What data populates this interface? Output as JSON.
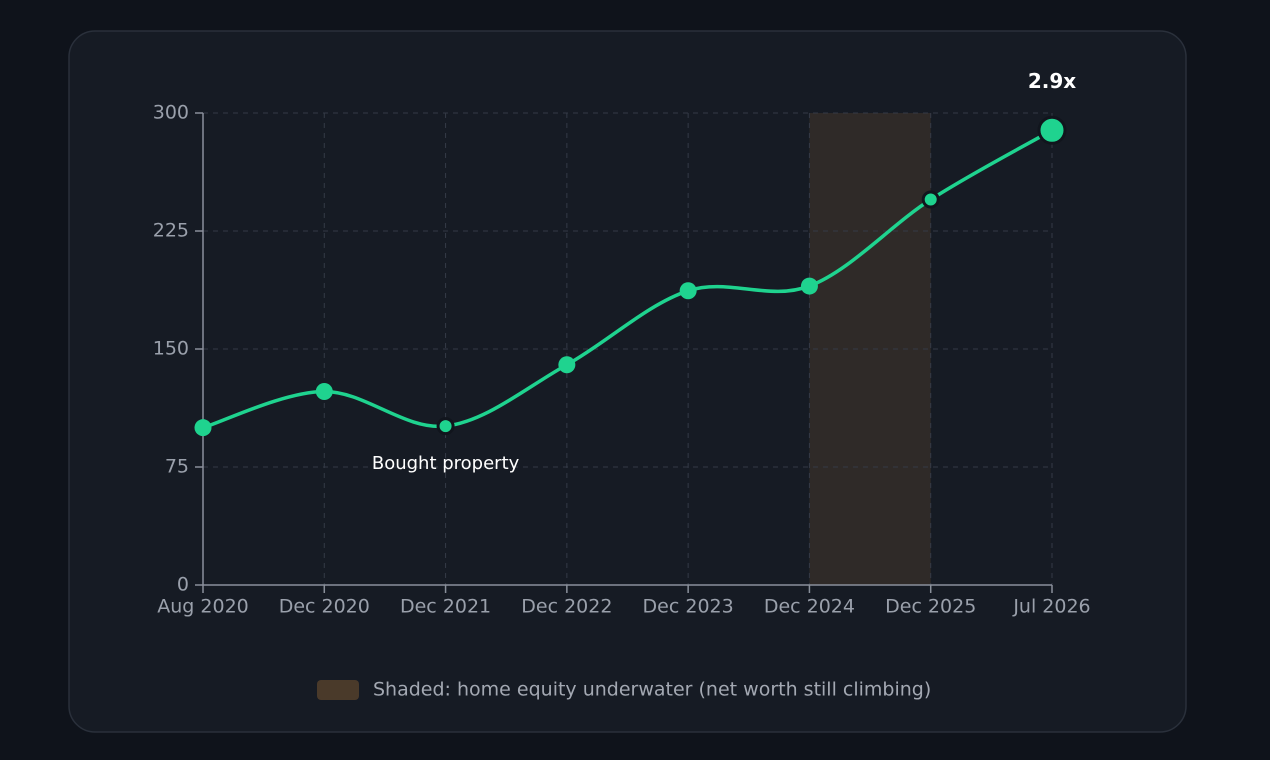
{
  "chart_data": {
    "type": "line",
    "categories": [
      "Aug 2020",
      "Dec 2020",
      "Dec 2021",
      "Dec 2022",
      "Dec 2023",
      "Dec 2024",
      "Dec 2025",
      "Jul 2026"
    ],
    "values": [
      100,
      123,
      101,
      140,
      187,
      190,
      245,
      289
    ],
    "color": "#1fd38f",
    "ylim": [
      0,
      300
    ],
    "yticks": [
      0,
      75,
      150,
      225,
      300
    ],
    "grid": true,
    "shaded": {
      "from": "Dec 2024",
      "to": "Dec 2025",
      "color": "#2f2a28",
      "legend_color": "#4a3a2a",
      "label": "Shaded: home equity underwater (net worth still climbing)"
    },
    "annotations": [
      {
        "text": "Bought property",
        "at": "Dec 2021"
      },
      {
        "text": "2.9x",
        "at": "Jul 2026"
      }
    ]
  }
}
